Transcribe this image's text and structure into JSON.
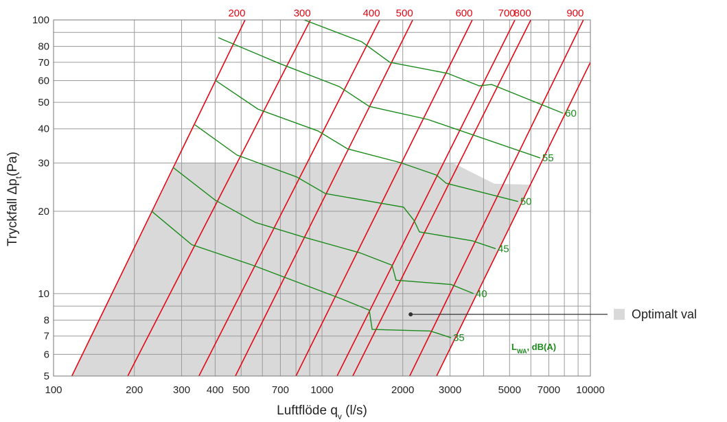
{
  "chart_data": {
    "type": "line",
    "xlabel": {
      "main": "Luftflöde q",
      "sub": "v",
      "rest": " (l/s)"
    },
    "ylabel": {
      "main": "Tryckfall Δp",
      "sub": "t",
      "rest": "(Pa)"
    },
    "xlog": true,
    "ylog": true,
    "grid": true,
    "xlim": [
      100,
      10000
    ],
    "ylim": [
      5,
      100
    ],
    "xticks": [
      100,
      200,
      300,
      400,
      500,
      700,
      1000,
      2000,
      3000,
      5000,
      7000,
      10000
    ],
    "xminor": [
      600,
      800,
      900,
      4000,
      6000,
      8000,
      9000
    ],
    "yticks": [
      5,
      6,
      7,
      8,
      10,
      20,
      30,
      40,
      50,
      60,
      70,
      80,
      100
    ],
    "yminor": [
      9,
      90
    ],
    "optimal_region": {
      "name": "Optimalt val",
      "color": "#d9d9d9",
      "x": [
        117,
        287,
        3083,
        4385,
        5977,
        2673
      ],
      "values": [
        5,
        30,
        30,
        25.2,
        25,
        5
      ]
    },
    "callout": {
      "x": 2140,
      "y": 8.4
    },
    "size_lines": {
      "color": "#e30613",
      "series": [
        {
          "name": "200",
          "x": [
            117,
            517
          ],
          "values": [
            5,
            100
          ]
        },
        {
          "name": "300",
          "x": [
            189,
            906
          ],
          "values": [
            5,
            100
          ]
        },
        {
          "name": "400",
          "x": [
            348,
            1641
          ],
          "values": [
            5,
            100
          ]
        },
        {
          "name": "500",
          "x": [
            476,
            2178
          ],
          "values": [
            5,
            100
          ]
        },
        {
          "name": "600",
          "x": [
            800,
            3631
          ],
          "values": [
            5,
            100
          ]
        },
        {
          "name": "700",
          "x": [
            1138,
            5236
          ],
          "values": [
            5,
            100
          ]
        },
        {
          "name": "800",
          "x": [
            1303,
            5998
          ],
          "values": [
            5,
            100
          ]
        },
        {
          "name": "900",
          "x": [
            2123,
            9419
          ],
          "values": [
            5,
            100
          ]
        },
        {
          "x": [
            2673,
            10000
          ],
          "values": [
            5,
            70
          ]
        }
      ]
    },
    "sound_curves": {
      "color": "#1a8a1a",
      "unit_label": {
        "main": "L",
        "sub": "WA",
        "rest": ", dB(A)"
      },
      "series": [
        {
          "name": "60",
          "x": [
            858,
            1406,
            1791,
            2938,
            3855,
            4285,
            7907
          ],
          "values": [
            100,
            83.2,
            70.0,
            63.8,
            57.4,
            58.1,
            45.6
          ]
        },
        {
          "name": "55",
          "x": [
            411,
            698,
            1159,
            1500,
            2477,
            6501
          ],
          "values": [
            86.1,
            69.2,
            57.1,
            48.3,
            43.3,
            31.3
          ]
        },
        {
          "name": "50",
          "x": [
            401,
            578,
            966,
            1244,
            1959,
            2673,
            2904,
            5383
          ],
          "values": [
            60.1,
            47.2,
            39.3,
            33.8,
            30.1,
            27.1,
            25.3,
            21.7
          ]
        },
        {
          "name": "45",
          "x": [
            336,
            482,
            804,
            1030,
            2014,
            2203,
            2307,
            3631,
            4436
          ],
          "values": [
            41.4,
            32.1,
            26.7,
            23.2,
            20.7,
            18.5,
            16.8,
            15.6,
            14.6
          ]
        },
        {
          "name": "40",
          "x": [
            279,
            399,
            565,
            853,
            1383,
            1824,
            1888,
            3027,
            3673
          ],
          "values": [
            28.9,
            22.0,
            18.2,
            16.1,
            14.1,
            12.7,
            11.2,
            10.8,
            10
          ]
        },
        {
          "name": "35",
          "x": [
            232,
            327,
            552,
            1172,
            1500,
            1538,
            2535,
            3027
          ],
          "values": [
            20.0,
            15.1,
            12.7,
            9.6,
            8.7,
            7.4,
            7.3,
            6.9
          ]
        }
      ]
    }
  }
}
